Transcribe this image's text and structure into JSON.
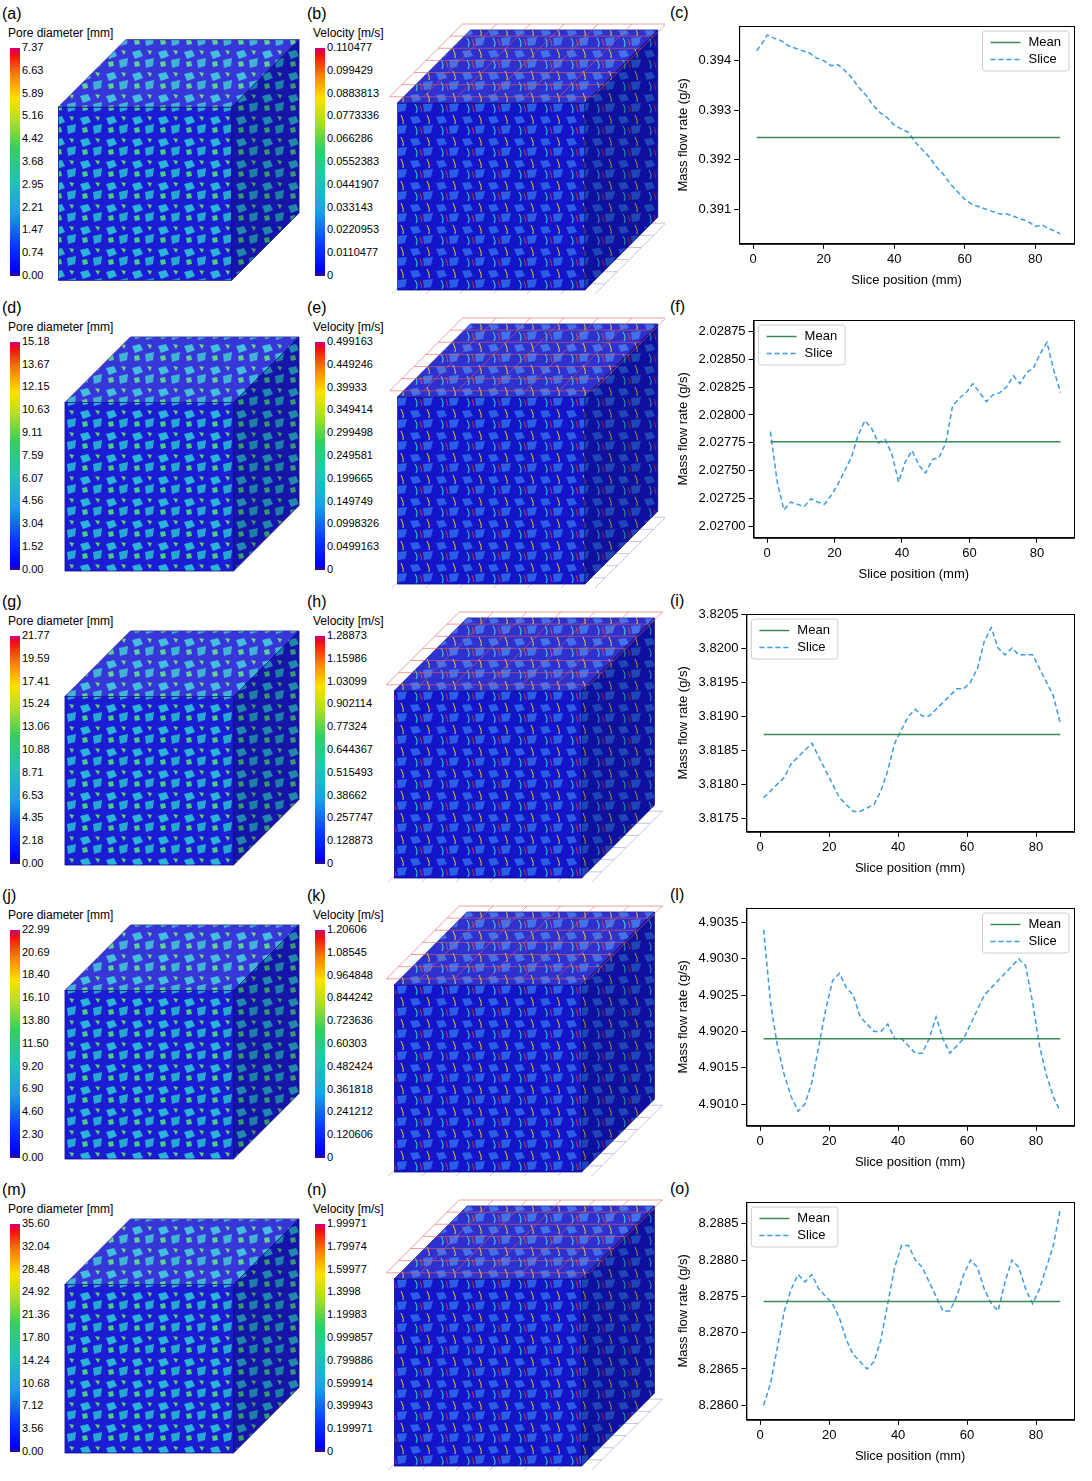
{
  "chart_data": [
    {
      "type": "line",
      "panel": "(c)",
      "x_label": "Slice position (mm)",
      "y_label": "Mass flow rate (g/s)",
      "xlim": [
        -4,
        91
      ],
      "xticks": [
        0,
        20,
        40,
        60,
        80
      ],
      "ylim": [
        0.3903,
        0.3947
      ],
      "yticks": [
        0.391,
        0.392,
        0.393,
        0.394
      ],
      "grid": false,
      "legend": "top right",
      "series": [
        {
          "name": "Mean",
          "color": "#3a8a55",
          "line_style": "solid",
          "x": [
            1,
            87
          ],
          "values": [
            0.39245,
            0.39245
          ]
        },
        {
          "name": "Slice",
          "color": "#3d9be0",
          "line_style": "dashed",
          "x": [
            1,
            3,
            4,
            6,
            8,
            10,
            12,
            14,
            16,
            18,
            20,
            22,
            24,
            26,
            28,
            30,
            32,
            34,
            36,
            38,
            40,
            42,
            44,
            46,
            48,
            50,
            52,
            54,
            56,
            58,
            60,
            62,
            64,
            66,
            68,
            70,
            72,
            74,
            76,
            78,
            80,
            82,
            84,
            86,
            87
          ],
          "values": [
            0.3942,
            0.3944,
            0.39452,
            0.39445,
            0.3944,
            0.3943,
            0.39425,
            0.3942,
            0.39415,
            0.39405,
            0.394,
            0.3939,
            0.39392,
            0.3938,
            0.39365,
            0.39345,
            0.3933,
            0.3931,
            0.39295,
            0.39285,
            0.3927,
            0.39262,
            0.39255,
            0.39235,
            0.3922,
            0.39205,
            0.39185,
            0.3917,
            0.3915,
            0.39135,
            0.3912,
            0.3911,
            0.39105,
            0.391,
            0.39095,
            0.3909,
            0.3909,
            0.39085,
            0.3908,
            0.39075,
            0.39065,
            0.39068,
            0.3906,
            0.39055,
            0.3905
          ]
        }
      ]
    },
    {
      "type": "line",
      "panel": "(f)",
      "x_label": "Slice position (mm)",
      "y_label": "Mass flow rate (g/s)",
      "xlim": [
        -4,
        91
      ],
      "xticks": [
        0,
        20,
        40,
        60,
        80
      ],
      "ylim": [
        2.0269,
        2.02885
      ],
      "yticks": [
        {
          "value": 2.027,
          "label": "2.02700"
        },
        2.02725,
        {
          "value": 2.0275,
          "label": "2.02750"
        },
        2.02775,
        {
          "value": 2.028,
          "label": "2.02800"
        },
        2.02825,
        {
          "value": 2.0285,
          "label": "2.02850"
        },
        2.02875
      ],
      "grid": false,
      "legend": "top left",
      "series": [
        {
          "name": "Mean",
          "color": "#3a8a55",
          "line_style": "solid",
          "x": [
            1,
            87
          ],
          "values": [
            2.02776,
            2.02776
          ]
        },
        {
          "name": "Slice",
          "color": "#3d9be0",
          "line_style": "dashed",
          "x": [
            1,
            3,
            5,
            7,
            9,
            11,
            13,
            15,
            17,
            19,
            21,
            23,
            25,
            27,
            29,
            31,
            33,
            35,
            37,
            39,
            41,
            43,
            45,
            47,
            49,
            51,
            53,
            55,
            57,
            59,
            61,
            63,
            65,
            67,
            69,
            71,
            73,
            75,
            77,
            79,
            81,
            83,
            85,
            87
          ],
          "values": [
            2.02785,
            2.0274,
            2.02715,
            2.02722,
            2.0272,
            2.02718,
            2.02725,
            2.02722,
            2.0272,
            2.02728,
            2.02738,
            2.0275,
            2.02762,
            2.02782,
            2.02795,
            2.02788,
            2.02775,
            2.02778,
            2.02765,
            2.0274,
            2.02758,
            2.02768,
            2.02755,
            2.02748,
            2.0276,
            2.02762,
            2.02775,
            2.02808,
            2.02815,
            2.0282,
            2.02828,
            2.0282,
            2.02812,
            2.02818,
            2.0282,
            2.02825,
            2.02835,
            2.02828,
            2.02838,
            2.02842,
            2.02855,
            2.02865,
            2.0284,
            2.0282
          ]
        }
      ]
    },
    {
      "type": "line",
      "panel": "(i)",
      "x_label": "Slice position (mm)",
      "y_label": "Mass flow rate (g/s)",
      "xlim": [
        -4,
        91
      ],
      "xticks": [
        0,
        20,
        40,
        60,
        80
      ],
      "ylim": [
        3.8173,
        3.8205
      ],
      "yticks": [
        3.8175,
        {
          "value": 3.818,
          "label": "3.8180"
        },
        3.8185,
        {
          "value": 3.819,
          "label": "3.8190"
        },
        3.8195,
        {
          "value": 3.82,
          "label": "3.8200"
        },
        3.8205
      ],
      "grid": false,
      "legend": "top left",
      "series": [
        {
          "name": "Mean",
          "color": "#3a8a55",
          "line_style": "solid",
          "x": [
            1,
            87
          ],
          "values": [
            3.81873,
            3.81873
          ]
        },
        {
          "name": "Slice",
          "color": "#3d9be0",
          "line_style": "dashed",
          "x": [
            1,
            3,
            5,
            7,
            9,
            11,
            13,
            15,
            17,
            19,
            21,
            23,
            25,
            27,
            29,
            31,
            33,
            35,
            37,
            39,
            41,
            43,
            45,
            47,
            49,
            51,
            53,
            55,
            57,
            59,
            61,
            63,
            65,
            67,
            69,
            71,
            73,
            75,
            77,
            79,
            81,
            83,
            85,
            87
          ],
          "values": [
            3.8178,
            3.8179,
            3.818,
            3.8181,
            3.8183,
            3.8184,
            3.8185,
            3.8186,
            3.8184,
            3.8182,
            3.818,
            3.8178,
            3.8177,
            3.8176,
            3.8176,
            3.81765,
            3.8177,
            3.8179,
            3.8182,
            3.8186,
            3.8188,
            3.819,
            3.8191,
            3.819,
            3.819,
            3.8191,
            3.8192,
            3.8193,
            3.8194,
            3.8194,
            3.8195,
            3.8197,
            3.8201,
            3.8203,
            3.82,
            3.8199,
            3.82,
            3.8199,
            3.8199,
            3.8199,
            3.8197,
            3.8195,
            3.8193,
            3.8189
          ]
        }
      ]
    },
    {
      "type": "line",
      "panel": "(l)",
      "x_label": "Slice position (mm)",
      "y_label": "Mass flow rate (g/s)",
      "xlim": [
        -4,
        91
      ],
      "xticks": [
        0,
        20,
        40,
        60,
        80
      ],
      "ylim": [
        4.9007,
        4.9037
      ],
      "yticks": [
        {
          "value": 4.901,
          "label": "4.9010"
        },
        4.9015,
        {
          "value": 4.902,
          "label": "4.9020"
        },
        4.9025,
        {
          "value": 4.903,
          "label": "4.9030"
        },
        4.9035
      ],
      "grid": false,
      "legend": "top right",
      "series": [
        {
          "name": "Mean",
          "color": "#3a8a55",
          "line_style": "solid",
          "x": [
            1,
            87
          ],
          "values": [
            4.9019,
            4.9019
          ]
        },
        {
          "name": "Slice",
          "color": "#3d9be0",
          "line_style": "dashed",
          "x": [
            1,
            3,
            5,
            7,
            9,
            11,
            13,
            15,
            17,
            19,
            21,
            23,
            25,
            27,
            29,
            31,
            33,
            35,
            37,
            39,
            41,
            43,
            45,
            47,
            49,
            51,
            53,
            55,
            57,
            59,
            61,
            63,
            65,
            67,
            69,
            71,
            73,
            75,
            77,
            79,
            81,
            83,
            85,
            87
          ],
          "values": [
            4.9034,
            4.9024,
            4.9018,
            4.9014,
            4.9011,
            4.9009,
            4.901,
            4.9013,
            4.9018,
            4.9023,
            4.9027,
            4.9028,
            4.9026,
            4.9025,
            4.9022,
            4.9021,
            4.902,
            4.902,
            4.9021,
            4.9019,
            4.9019,
            4.9018,
            4.9017,
            4.9017,
            4.9019,
            4.9022,
            4.9019,
            4.9017,
            4.9018,
            4.9019,
            4.9021,
            4.9023,
            4.9025,
            4.9026,
            4.9027,
            4.9028,
            4.9029,
            4.903,
            4.9029,
            4.9024,
            4.9018,
            4.9014,
            4.9011,
            4.9009
          ]
        }
      ]
    },
    {
      "type": "line",
      "panel": "(o)",
      "x_label": "Slice position (mm)",
      "y_label": "Mass flow rate (g/s)",
      "xlim": [
        -4,
        91
      ],
      "xticks": [
        0,
        20,
        40,
        60,
        80
      ],
      "ylim": [
        8.2858,
        8.2888
      ],
      "yticks": [
        {
          "value": 8.286,
          "label": "8.2860"
        },
        8.2865,
        {
          "value": 8.287,
          "label": "8.2870"
        },
        8.2875,
        {
          "value": 8.288,
          "label": "8.2880"
        },
        8.2885
      ],
      "grid": false,
      "legend": "top left",
      "series": [
        {
          "name": "Mean",
          "color": "#3a8a55",
          "line_style": "solid",
          "x": [
            1,
            87
          ],
          "values": [
            8.28743,
            8.28743
          ]
        },
        {
          "name": "Slice",
          "color": "#3d9be0",
          "line_style": "dashed",
          "x": [
            1,
            3,
            5,
            7,
            9,
            11,
            13,
            15,
            17,
            19,
            21,
            23,
            25,
            27,
            29,
            31,
            33,
            35,
            37,
            39,
            41,
            43,
            45,
            47,
            49,
            51,
            53,
            55,
            57,
            59,
            61,
            63,
            65,
            67,
            69,
            71,
            73,
            75,
            77,
            79,
            81,
            83,
            85,
            87
          ],
          "values": [
            8.286,
            8.2863,
            8.2868,
            8.2873,
            8.2876,
            8.2878,
            8.2877,
            8.2878,
            8.2876,
            8.2875,
            8.2874,
            8.2872,
            8.2869,
            8.2867,
            8.2866,
            8.2865,
            8.2866,
            8.2869,
            8.2874,
            8.2879,
            8.2882,
            8.2882,
            8.288,
            8.2879,
            8.2877,
            8.2875,
            8.2873,
            8.2873,
            8.2875,
            8.2878,
            8.288,
            8.2879,
            8.2876,
            8.2874,
            8.2873,
            8.2877,
            8.288,
            8.2879,
            8.2876,
            8.2874,
            8.2876,
            8.2879,
            8.2882,
            8.2887
          ]
        }
      ]
    }
  ],
  "renderings": [
    {
      "panel": "(a)",
      "colorbar": {
        "title": "Pore diameter [mm]",
        "range": [
          0,
          7.37
        ],
        "ticks": [
          7.37,
          6.63,
          5.89,
          5.16,
          4.42,
          3.68,
          2.95,
          2.21,
          1.47,
          0.74,
          {
            "value": 0,
            "label": "0.00"
          }
        ]
      }
    },
    {
      "panel": "(b)",
      "colorbar": {
        "title": "Velocity [m/s]",
        "range": [
          0,
          0.110477
        ],
        "ticks": [
          0.110477,
          0.099429,
          0.0883813,
          0.0773336,
          0.066286,
          0.0552383,
          0.0441907,
          0.033143,
          0.0220953,
          0.0110477,
          0
        ]
      }
    },
    {
      "panel": "(d)",
      "colorbar": {
        "title": "Pore diameter [mm]",
        "range": [
          0,
          15.18
        ],
        "ticks": [
          15.18,
          13.67,
          12.15,
          10.63,
          9.11,
          7.59,
          6.07,
          4.56,
          3.04,
          1.52,
          {
            "value": 0,
            "label": "0.00"
          }
        ]
      }
    },
    {
      "panel": "(e)",
      "colorbar": {
        "title": "Velocity [m/s]",
        "range": [
          0,
          0.499163
        ],
        "ticks": [
          0.499163,
          0.449246,
          0.39933,
          0.349414,
          0.299498,
          0.249581,
          0.199665,
          0.149749,
          0.0998326,
          0.0499163,
          0
        ]
      }
    },
    {
      "panel": "(g)",
      "colorbar": {
        "title": "Pore diameter [mm]",
        "range": [
          0,
          21.77
        ],
        "ticks": [
          21.77,
          19.59,
          17.41,
          15.24,
          13.06,
          10.88,
          8.71,
          6.53,
          4.35,
          2.18,
          {
            "value": 0,
            "label": "0.00"
          }
        ]
      }
    },
    {
      "panel": "(h)",
      "colorbar": {
        "title": "Velocity [m/s]",
        "range": [
          0,
          1.28873
        ],
        "ticks": [
          1.28873,
          1.15986,
          1.03099,
          0.902114,
          0.77324,
          0.644367,
          0.515493,
          0.38662,
          0.257747,
          0.128873,
          0
        ]
      }
    },
    {
      "panel": "(j)",
      "colorbar": {
        "title": "Pore diameter [mm]",
        "range": [
          0,
          22.99
        ],
        "ticks": [
          22.99,
          20.69,
          {
            "value": 18.4,
            "label": "18.40"
          },
          {
            "value": 16.1,
            "label": "16.10"
          },
          {
            "value": 13.8,
            "label": "13.80"
          },
          {
            "value": 11.5,
            "label": "11.50"
          },
          {
            "value": 9.2,
            "label": "9.20"
          },
          {
            "value": 6.9,
            "label": "6.90"
          },
          {
            "value": 4.6,
            "label": "4.60"
          },
          {
            "value": 2.3,
            "label": "2.30"
          },
          {
            "value": 0,
            "label": "0.00"
          }
        ]
      }
    },
    {
      "panel": "(k)",
      "colorbar": {
        "title": "Velocity [m/s]",
        "range": [
          0,
          1.20606
        ],
        "ticks": [
          1.20606,
          1.08545,
          0.964848,
          0.844242,
          0.723636,
          0.60303,
          0.482424,
          0.361818,
          0.241212,
          0.120606,
          0
        ]
      }
    },
    {
      "panel": "(m)",
      "colorbar": {
        "title": "Pore diameter [mm]",
        "range": [
          0,
          35.6
        ],
        "ticks": [
          {
            "value": 35.6,
            "label": "35.60"
          },
          32.04,
          28.48,
          24.92,
          21.36,
          {
            "value": 17.8,
            "label": "17.80"
          },
          14.24,
          10.68,
          7.12,
          3.56,
          {
            "value": 0,
            "label": "0.00"
          }
        ]
      }
    },
    {
      "panel": "(n)",
      "colorbar": {
        "title": "Velocity [m/s]",
        "range": [
          0,
          1.99971
        ],
        "ticks": [
          1.99971,
          1.79974,
          1.59977,
          1.3998,
          1.19983,
          0.999857,
          0.799886,
          0.599914,
          0.399943,
          0.199971,
          0
        ]
      }
    }
  ]
}
